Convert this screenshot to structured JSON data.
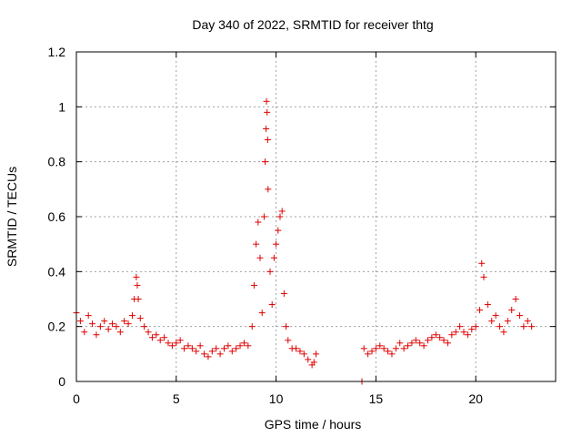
{
  "chart_data": {
    "type": "scatter",
    "title": "Day 340 of 2022, SRMTID for receiver thtg",
    "xlabel": "GPS time / hours",
    "ylabel": "SRMTID / TECUs",
    "xlim": [
      0,
      24
    ],
    "ylim": [
      0,
      1.2
    ],
    "x_ticks": [
      0,
      5,
      10,
      15,
      20
    ],
    "x_tick_labels": [
      "0",
      "5",
      "10",
      "15",
      "20"
    ],
    "y_ticks": [
      0,
      0.2,
      0.4,
      0.6,
      0.8,
      1.0,
      1.2
    ],
    "y_tick_labels": [
      "0",
      "0.2",
      "0.4",
      "0.6",
      "0.8",
      "1",
      "1.2"
    ],
    "grid": true,
    "marker": "plus",
    "color": "#e00000",
    "series": [
      {
        "name": "SRMTID",
        "x": [
          0.0,
          0.2,
          0.4,
          0.6,
          0.8,
          1.0,
          1.2,
          1.4,
          1.6,
          1.8,
          2.0,
          2.2,
          2.4,
          2.6,
          2.8,
          2.9,
          3.0,
          3.05,
          3.1,
          3.2,
          3.4,
          3.6,
          3.8,
          4.0,
          4.2,
          4.4,
          4.6,
          4.8,
          5.0,
          5.2,
          5.4,
          5.6,
          5.8,
          6.0,
          6.2,
          6.4,
          6.6,
          6.8,
          7.0,
          7.2,
          7.4,
          7.6,
          7.8,
          8.0,
          8.2,
          8.4,
          8.6,
          8.8,
          8.9,
          9.0,
          9.1,
          9.2,
          9.3,
          9.4,
          9.45,
          9.5,
          9.52,
          9.55,
          9.58,
          9.6,
          9.7,
          9.8,
          9.9,
          10.0,
          10.1,
          10.2,
          10.3,
          10.4,
          10.5,
          10.6,
          10.8,
          11.0,
          11.2,
          11.4,
          11.6,
          11.8,
          11.9,
          12.0,
          14.3,
          14.4,
          14.6,
          14.8,
          15.0,
          15.2,
          15.4,
          15.6,
          15.8,
          16.0,
          16.2,
          16.4,
          16.6,
          16.8,
          17.0,
          17.2,
          17.4,
          17.6,
          17.8,
          18.0,
          18.2,
          18.4,
          18.6,
          18.8,
          19.0,
          19.2,
          19.4,
          19.6,
          19.8,
          20.0,
          20.2,
          20.3,
          20.4,
          20.6,
          20.8,
          21.0,
          21.2,
          21.4,
          21.6,
          21.8,
          22.0,
          22.2,
          22.4,
          22.6,
          22.8
        ],
        "y": [
          0.25,
          0.22,
          0.18,
          0.24,
          0.21,
          0.17,
          0.2,
          0.22,
          0.19,
          0.21,
          0.2,
          0.18,
          0.22,
          0.21,
          0.24,
          0.3,
          0.38,
          0.35,
          0.3,
          0.23,
          0.2,
          0.18,
          0.16,
          0.17,
          0.15,
          0.16,
          0.14,
          0.13,
          0.14,
          0.15,
          0.12,
          0.13,
          0.12,
          0.11,
          0.13,
          0.1,
          0.09,
          0.11,
          0.12,
          0.1,
          0.12,
          0.13,
          0.11,
          0.12,
          0.13,
          0.14,
          0.13,
          0.2,
          0.35,
          0.5,
          0.58,
          0.45,
          0.25,
          0.6,
          0.8,
          0.92,
          1.02,
          0.98,
          0.88,
          0.7,
          0.4,
          0.28,
          0.45,
          0.5,
          0.55,
          0.6,
          0.62,
          0.32,
          0.2,
          0.15,
          0.12,
          0.12,
          0.11,
          0.1,
          0.08,
          0.06,
          0.07,
          0.1,
          0.0,
          0.12,
          0.1,
          0.11,
          0.12,
          0.13,
          0.12,
          0.11,
          0.1,
          0.12,
          0.14,
          0.12,
          0.13,
          0.14,
          0.15,
          0.14,
          0.13,
          0.15,
          0.16,
          0.17,
          0.16,
          0.15,
          0.14,
          0.17,
          0.18,
          0.2,
          0.18,
          0.17,
          0.19,
          0.2,
          0.26,
          0.43,
          0.38,
          0.28,
          0.22,
          0.24,
          0.2,
          0.18,
          0.22,
          0.26,
          0.3,
          0.24,
          0.2,
          0.22,
          0.2
        ]
      }
    ]
  }
}
